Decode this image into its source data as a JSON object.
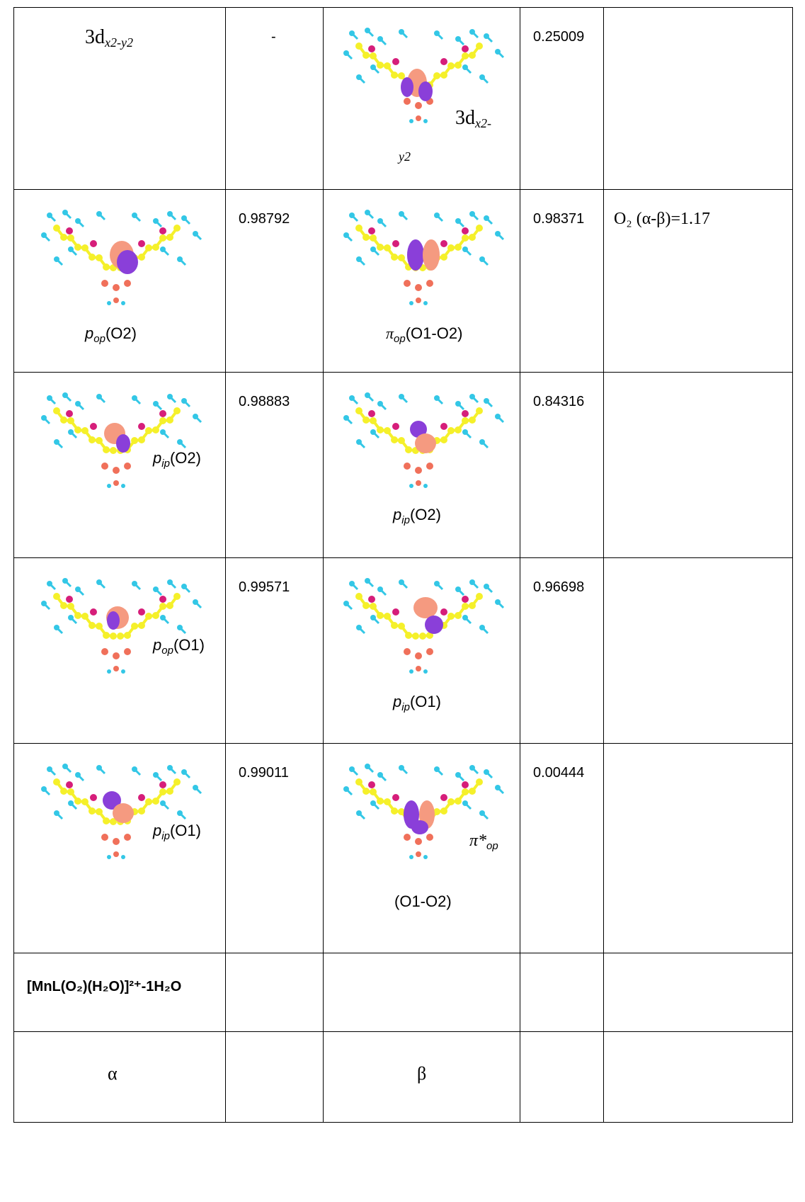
{
  "rows": [
    {
      "a_label": "3d",
      "a_sub": "x2-y2",
      "a_val": "-",
      "b_label": "3d",
      "b_sub1": "x2-",
      "b_sub2": "y2",
      "b_val": "0.25009",
      "note": ""
    },
    {
      "a_label_pre": "p",
      "a_label_sub": "op",
      "a_label_post": "(O2)",
      "a_val": "0.98792",
      "b_label_pre": "π",
      "b_label_sub": "op",
      "b_label_post": "(O1-O2)",
      "b_val": "0.98371",
      "note": "O₂ (α-β)=1.17"
    },
    {
      "a_label_pre": "p",
      "a_label_sub": "ip",
      "a_label_post": "(O2)",
      "a_val": "0.98883",
      "b_label_pre": "p",
      "b_label_sub": "ip",
      "b_label_post": "(O2)",
      "b_val": "0.84316",
      "note": ""
    },
    {
      "a_label_pre": "p",
      "a_label_sub": "op",
      "a_label_post": "(O1)",
      "a_val": "0.99571",
      "b_label_pre": "p",
      "b_label_sub": "ip",
      "b_label_post": "(O1)",
      "b_val": "0.96698",
      "note": ""
    },
    {
      "a_label_pre": "p",
      "a_label_sub": "ip",
      "a_label_post": "(O1)",
      "a_val": "0.99011",
      "b_label_pre": "π*",
      "b_label_sub": "op",
      "b_label_post": "(O1-O2)",
      "b_val": "0.00444",
      "note": ""
    }
  ],
  "formula": "[MnL(O₂)(H₂O)]²⁺-1H₂O",
  "alpha": "α",
  "beta": "β",
  "colors": {
    "carbon": "#f5f02a",
    "hydrogen": "#33c7e6",
    "oxygen": "#f0705a",
    "metal": "#d61e7a",
    "lobe_pos": "#8a3fd9",
    "lobe_neg": "#f59a80"
  }
}
